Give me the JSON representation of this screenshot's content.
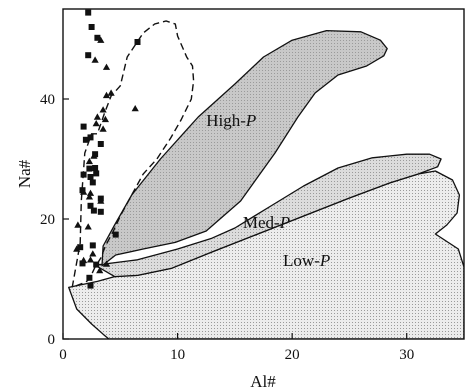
{
  "chart_data": {
    "type": "scatter",
    "xlabel": "Al#",
    "ylabel": "Na#",
    "xlim": [
      0,
      35
    ],
    "ylim": [
      0,
      55
    ],
    "x_ticks": [
      {
        "value": 0,
        "label": "0"
      },
      {
        "value": 10,
        "label": "10"
      },
      {
        "value": 20,
        "label": "20"
      },
      {
        "value": 30,
        "label": "30"
      }
    ],
    "y_ticks": [
      {
        "value": 0,
        "label": "0"
      },
      {
        "value": 20,
        "label": "20"
      },
      {
        "value": 40,
        "label": "40"
      }
    ],
    "fields": [
      {
        "key": "low",
        "label": "Low-",
        "label_italic": "P",
        "fill": "#ececec",
        "label_at": [
          19.2,
          12.2
        ],
        "outline": [
          [
            0.5,
            8.6
          ],
          [
            3,
            9.6
          ],
          [
            4.5,
            10.4
          ],
          [
            6.5,
            10.6
          ],
          [
            9.5,
            11.8
          ],
          [
            13,
            14.5
          ],
          [
            17,
            17.5
          ],
          [
            21,
            20.5
          ],
          [
            25,
            23.5
          ],
          [
            28.5,
            26
          ],
          [
            31,
            27.5
          ],
          [
            32.5,
            28
          ],
          [
            34,
            26.5
          ],
          [
            34.6,
            24
          ],
          [
            34.4,
            21
          ],
          [
            33.5,
            19
          ],
          [
            32.5,
            17.5
          ],
          [
            34.5,
            15
          ],
          [
            35,
            12
          ],
          [
            35,
            0
          ],
          [
            4,
            0
          ],
          [
            3.5,
            0.8
          ],
          [
            2.5,
            2.5
          ],
          [
            1.2,
            5
          ],
          [
            0.5,
            8.6
          ]
        ]
      },
      {
        "key": "med",
        "label": "Med-",
        "label_italic": "P",
        "fill": "#dcdcdc",
        "label_at": [
          15.7,
          18.5
        ],
        "outline": [
          [
            2.8,
            12.3
          ],
          [
            6.5,
            13.2
          ],
          [
            10,
            15
          ],
          [
            13,
            16.8
          ],
          [
            15,
            18.5
          ],
          [
            18,
            22
          ],
          [
            21,
            25.5
          ],
          [
            24,
            28.5
          ],
          [
            27,
            30.2
          ],
          [
            30,
            30.8
          ],
          [
            32,
            30.8
          ],
          [
            33,
            30
          ],
          [
            32.7,
            28.7
          ],
          [
            31,
            27.5
          ],
          [
            28.5,
            26
          ],
          [
            25,
            23.5
          ],
          [
            21,
            20.5
          ],
          [
            17,
            17.5
          ],
          [
            13,
            14.5
          ],
          [
            9.5,
            11.8
          ],
          [
            6.5,
            10.6
          ],
          [
            4.5,
            10.4
          ],
          [
            2.8,
            12.3
          ]
        ]
      },
      {
        "key": "high",
        "label": "High-",
        "label_italic": "P",
        "fill": "#c8c8c8",
        "label_at": [
          12.5,
          35.5
        ],
        "outline": [
          [
            3.4,
            12.2
          ],
          [
            4.6,
            14
          ],
          [
            7,
            15
          ],
          [
            9.8,
            16.1
          ],
          [
            12.5,
            18
          ],
          [
            15.5,
            23
          ],
          [
            18.5,
            31
          ],
          [
            20.5,
            37
          ],
          [
            22,
            41
          ],
          [
            24,
            44
          ],
          [
            26.5,
            45.5
          ],
          [
            28,
            47.2
          ],
          [
            28.3,
            48.4
          ],
          [
            27.7,
            49.8
          ],
          [
            26,
            51.2
          ],
          [
            23,
            51.4
          ],
          [
            20,
            49.8
          ],
          [
            17.5,
            47
          ],
          [
            15,
            42.5
          ],
          [
            11.8,
            37
          ],
          [
            8.5,
            30
          ],
          [
            6,
            24
          ],
          [
            4.5,
            19
          ],
          [
            3.5,
            15.5
          ],
          [
            3.4,
            12.2
          ]
        ]
      }
    ],
    "dashed_envelope": [
      [
        0.8,
        8.6
      ],
      [
        1.5,
        16
      ],
      [
        1.6,
        23
      ],
      [
        1.9,
        31
      ],
      [
        2.5,
        34.2
      ],
      [
        3,
        34.2
      ],
      [
        3.6,
        37.5
      ],
      [
        4.2,
        40.5
      ],
      [
        5,
        42.2
      ],
      [
        5.6,
        47
      ],
      [
        7,
        51
      ],
      [
        8,
        52.5
      ],
      [
        9,
        53
      ],
      [
        9.8,
        52.5
      ],
      [
        10,
        50.5
      ],
      [
        10.8,
        47
      ],
      [
        11.3,
        45.5
      ],
      [
        11.4,
        43
      ],
      [
        11.2,
        40
      ],
      [
        10.3,
        36.5
      ],
      [
        9.4,
        33.5
      ],
      [
        8.2,
        30
      ],
      [
        7,
        27.5
      ],
      [
        6,
        24
      ],
      [
        5,
        20.5
      ],
      [
        4.4,
        18
      ],
      [
        3.7,
        15.5
      ],
      [
        3.3,
        13.5
      ],
      [
        2.8,
        12
      ],
      [
        2.3,
        10
      ],
      [
        2,
        9.5
      ],
      [
        0.8,
        8.6
      ]
    ],
    "series": [
      {
        "marker": "square",
        "points": [
          [
            2.2,
            54.4
          ],
          [
            2.5,
            52
          ],
          [
            3,
            50.2
          ],
          [
            2.2,
            47.3
          ],
          [
            6.5,
            49.5
          ],
          [
            1.8,
            35.4
          ],
          [
            2,
            33.2
          ],
          [
            2.4,
            33.6
          ],
          [
            3.3,
            32.5
          ],
          [
            2.8,
            30.8
          ],
          [
            2.3,
            28.4
          ],
          [
            2.8,
            28.5
          ],
          [
            2.9,
            27.6
          ],
          [
            1.8,
            27.4
          ],
          [
            2.4,
            27
          ],
          [
            2.6,
            26.1
          ],
          [
            1.7,
            24.8
          ],
          [
            3.3,
            23.4
          ],
          [
            2.4,
            22.2
          ],
          [
            2.7,
            21.4
          ],
          [
            3.3,
            21.2
          ],
          [
            1.5,
            15.3
          ],
          [
            2.6,
            15.6
          ],
          [
            1.7,
            12.6
          ],
          [
            2.9,
            12.4
          ],
          [
            2.3,
            10.2
          ],
          [
            2.4,
            8.9
          ],
          [
            4.6,
            17.4
          ]
        ]
      },
      {
        "marker": "triangle",
        "points": [
          [
            3.3,
            49.8
          ],
          [
            2.8,
            46.5
          ],
          [
            3.8,
            45.3
          ],
          [
            4.2,
            41
          ],
          [
            3.8,
            40.6
          ],
          [
            3.5,
            38.2
          ],
          [
            3,
            37
          ],
          [
            3.7,
            36.6
          ],
          [
            2.9,
            35.9
          ],
          [
            3.5,
            35
          ],
          [
            6.3,
            38.4
          ],
          [
            2.7,
            30.5
          ],
          [
            2.3,
            29.6
          ],
          [
            2.4,
            24.3
          ],
          [
            3.3,
            23
          ],
          [
            1.8,
            24.5
          ],
          [
            2.3,
            23.7
          ],
          [
            1.3,
            19
          ],
          [
            2.2,
            18.7
          ],
          [
            1.2,
            15
          ],
          [
            2.6,
            14.2
          ],
          [
            2.4,
            13.2
          ],
          [
            1.8,
            13.1
          ],
          [
            3.2,
            11.4
          ],
          [
            3.8,
            12.5
          ]
        ]
      }
    ],
    "marker_color": "#111111"
  }
}
